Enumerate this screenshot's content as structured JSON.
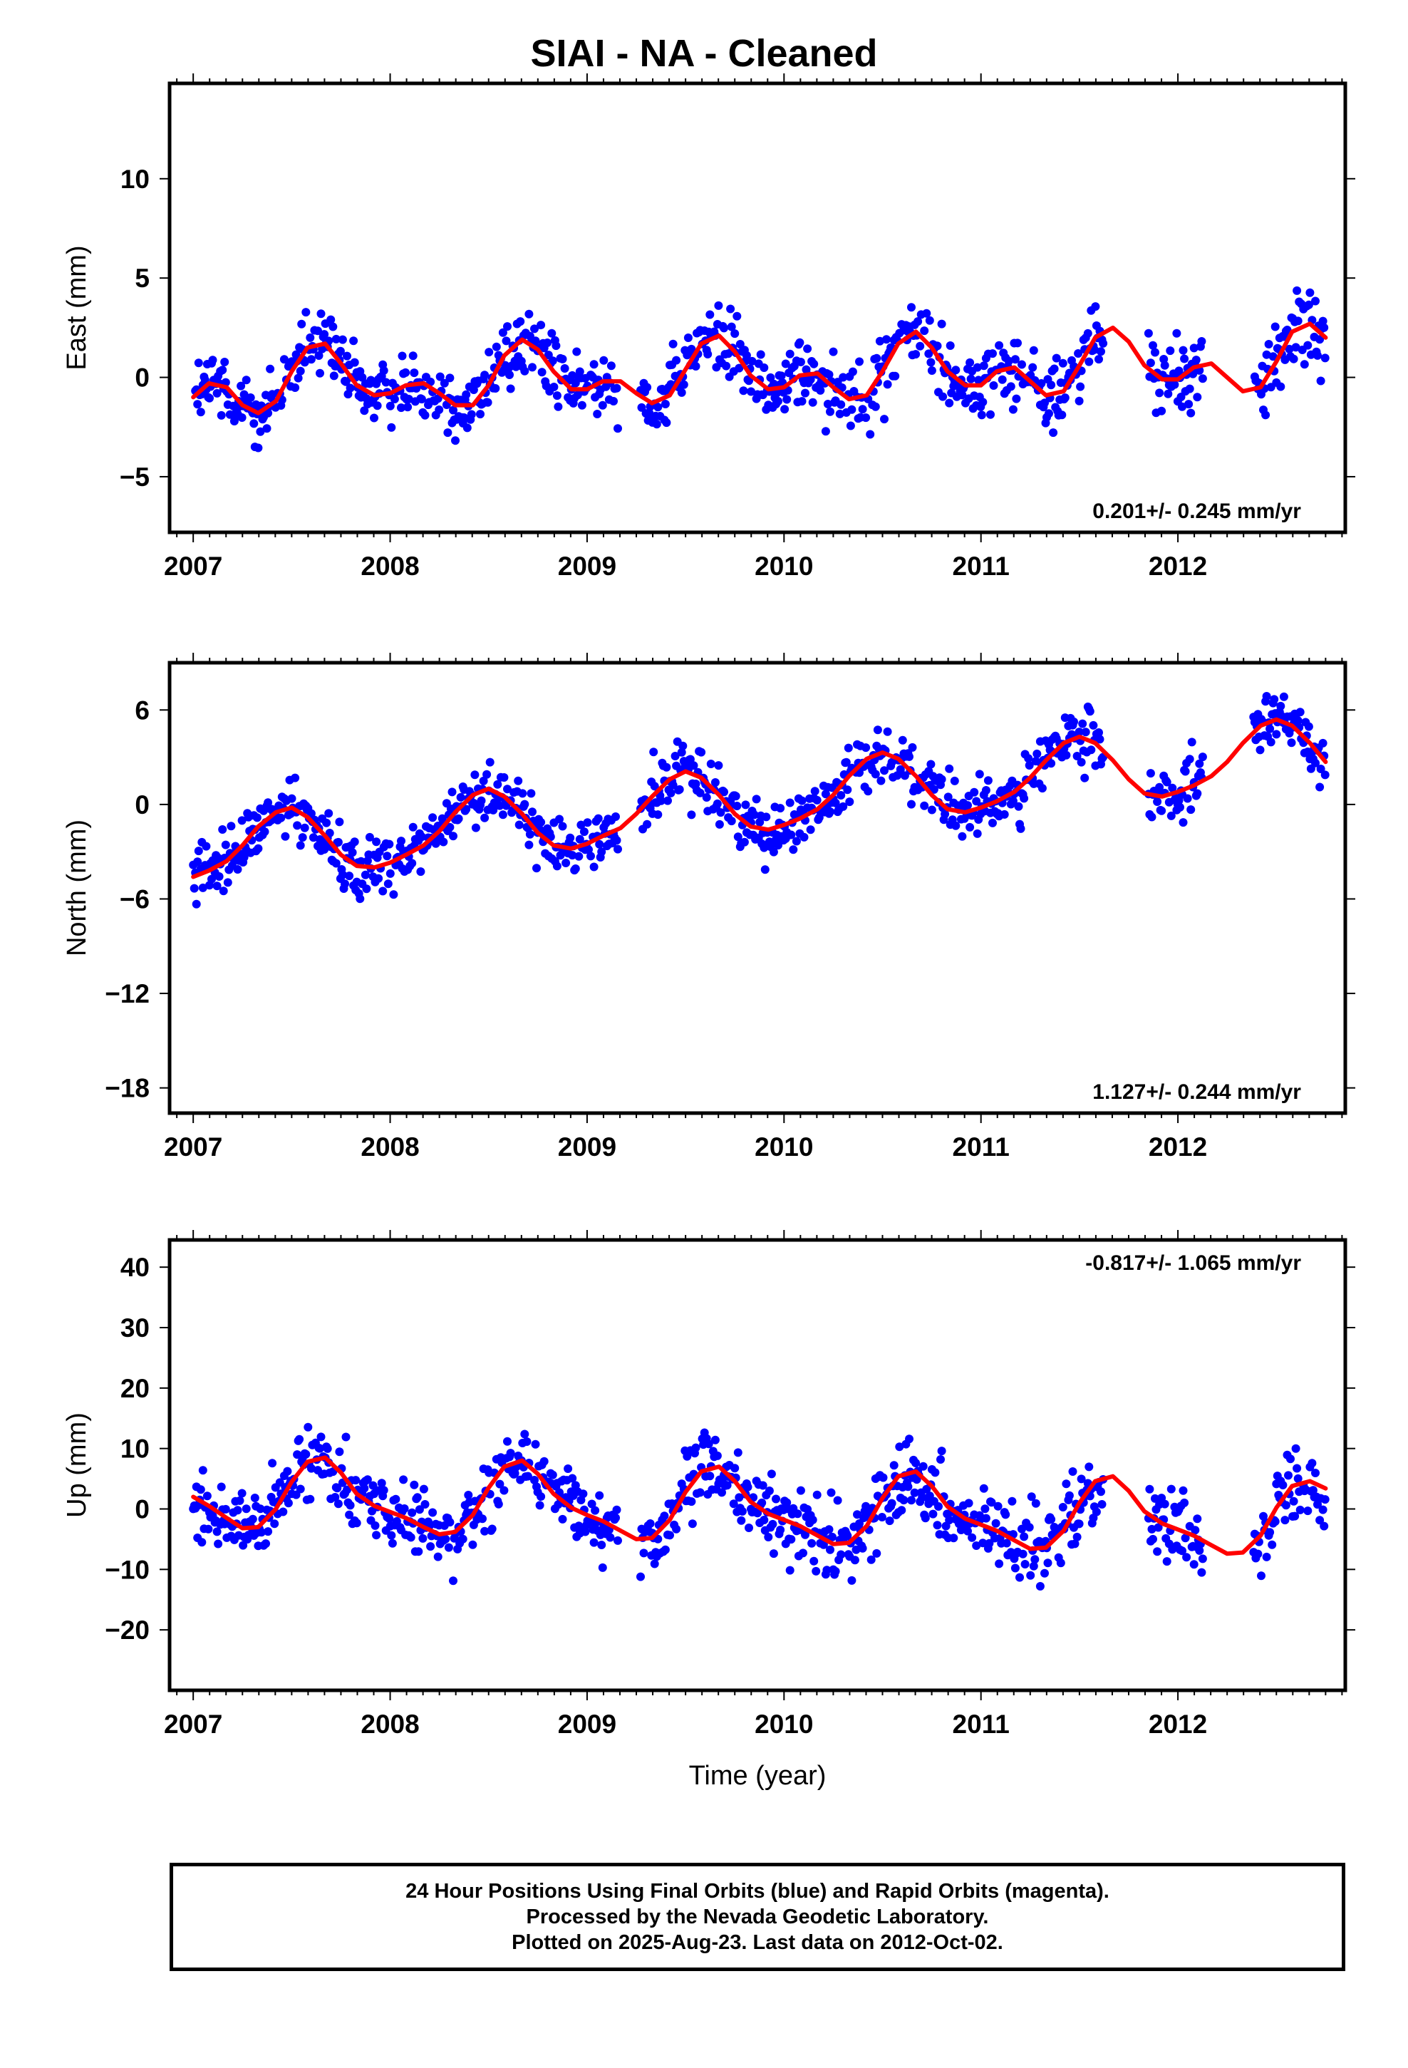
{
  "title": "SIAI  - NA - Cleaned",
  "footer": {
    "line1": "24 Hour Positions Using Final Orbits (blue) and Rapid Orbits (magenta).",
    "line2": "Processed by the Nevada Geodetic Laboratory.",
    "line3": "Plotted on 2025-Aug-23. Last data on 2012-Oct-02."
  },
  "colors": {
    "points": "#0000ff",
    "fit": "#ff0000",
    "frame": "#000000"
  },
  "chart_data": [
    {
      "type": "scatter",
      "ylabel": "East (mm)",
      "xlabel": "",
      "xlim": [
        2006.88,
        2012.85
      ],
      "ylim": [
        -7.8,
        14.8
      ],
      "xticks": [
        2007,
        2008,
        2009,
        2010,
        2011,
        2012
      ],
      "yticks": [
        -5,
        0,
        5,
        10
      ],
      "yticklabels": [
        "−5",
        "0",
        "5",
        "10"
      ],
      "grid": false,
      "rate_label": "0.201+/- 0.245 mm/yr",
      "rate_position": "bottom-right",
      "series": [
        {
          "values": [
            [
              2007.0,
              -1.0
            ],
            [
              2007.08,
              -0.3
            ],
            [
              2007.17,
              -0.5
            ],
            [
              2007.25,
              -1.4
            ],
            [
              2007.33,
              -1.8
            ],
            [
              2007.42,
              -1.2
            ],
            [
              2007.5,
              0.3
            ],
            [
              2007.58,
              1.5
            ],
            [
              2007.67,
              1.7
            ],
            [
              2007.75,
              0.7
            ],
            [
              2007.83,
              -0.4
            ],
            [
              2007.92,
              -0.9
            ],
            [
              2008.0,
              -0.8
            ],
            [
              2008.08,
              -0.4
            ],
            [
              2008.17,
              -0.3
            ],
            [
              2008.25,
              -0.8
            ],
            [
              2008.33,
              -1.4
            ],
            [
              2008.42,
              -1.4
            ],
            [
              2008.5,
              -0.4
            ],
            [
              2008.58,
              1.1
            ],
            [
              2008.67,
              1.9
            ],
            [
              2008.75,
              1.4
            ],
            [
              2008.83,
              0.3
            ],
            [
              2008.92,
              -0.6
            ],
            [
              2009.0,
              -0.6
            ],
            [
              2009.08,
              -0.2
            ],
            [
              2009.17,
              -0.2
            ],
            [
              2009.25,
              -0.8
            ],
            [
              2009.33,
              -1.3
            ],
            [
              2009.42,
              -0.9
            ],
            [
              2009.5,
              0.4
            ],
            [
              2009.58,
              1.7
            ],
            [
              2009.67,
              2.1
            ],
            [
              2009.75,
              1.3
            ],
            [
              2009.83,
              0.1
            ],
            [
              2009.92,
              -0.6
            ],
            [
              2010.0,
              -0.5
            ],
            [
              2010.08,
              0.1
            ],
            [
              2010.17,
              0.2
            ],
            [
              2010.25,
              -0.5
            ],
            [
              2010.33,
              -1.1
            ],
            [
              2010.42,
              -0.9
            ],
            [
              2010.5,
              0.3
            ],
            [
              2010.58,
              1.7
            ],
            [
              2010.67,
              2.3
            ],
            [
              2010.75,
              1.5
            ],
            [
              2010.83,
              0.3
            ],
            [
              2010.92,
              -0.4
            ],
            [
              2011.0,
              -0.4
            ],
            [
              2011.08,
              0.3
            ],
            [
              2011.17,
              0.5
            ],
            [
              2011.25,
              -0.2
            ],
            [
              2011.33,
              -0.9
            ],
            [
              2011.42,
              -0.7
            ],
            [
              2011.5,
              0.6
            ],
            [
              2011.58,
              2.0
            ],
            [
              2011.67,
              2.5
            ],
            [
              2011.75,
              1.8
            ],
            [
              2011.83,
              0.6
            ],
            [
              2011.92,
              -0.1
            ],
            [
              2012.0,
              -0.1
            ],
            [
              2012.08,
              0.5
            ],
            [
              2012.17,
              0.7
            ],
            [
              2012.25,
              0.0
            ],
            [
              2012.33,
              -0.7
            ],
            [
              2012.42,
              -0.5
            ],
            [
              2012.5,
              0.8
            ],
            [
              2012.58,
              2.3
            ],
            [
              2012.67,
              2.7
            ],
            [
              2012.75,
              2.0
            ]
          ]
        }
      ]
    },
    {
      "type": "scatter",
      "ylabel": "North (mm)",
      "xlabel": "",
      "xlim": [
        2006.88,
        2012.85
      ],
      "ylim": [
        -19.6,
        9.0
      ],
      "xticks": [
        2007,
        2008,
        2009,
        2010,
        2011,
        2012
      ],
      "yticks": [
        -18,
        -12,
        -6,
        0,
        6
      ],
      "yticklabels": [
        "−18",
        "−12",
        "−6",
        "0",
        "6"
      ],
      "grid": false,
      "rate_label": "1.127+/- 0.244 mm/yr",
      "rate_position": "bottom-right",
      "series": [
        {
          "values": [
            [
              2007.0,
              -4.6
            ],
            [
              2007.08,
              -4.2
            ],
            [
              2007.17,
              -3.6
            ],
            [
              2007.25,
              -2.6
            ],
            [
              2007.33,
              -1.4
            ],
            [
              2007.42,
              -0.5
            ],
            [
              2007.5,
              -0.2
            ],
            [
              2007.58,
              -0.8
            ],
            [
              2007.67,
              -2.0
            ],
            [
              2007.75,
              -3.2
            ],
            [
              2007.83,
              -3.9
            ],
            [
              2007.92,
              -4.0
            ],
            [
              2008.0,
              -3.7
            ],
            [
              2008.08,
              -3.2
            ],
            [
              2008.17,
              -2.6
            ],
            [
              2008.25,
              -1.7
            ],
            [
              2008.33,
              -0.5
            ],
            [
              2008.42,
              0.6
            ],
            [
              2008.5,
              1.0
            ],
            [
              2008.58,
              0.5
            ],
            [
              2008.67,
              -0.6
            ],
            [
              2008.75,
              -1.8
            ],
            [
              2008.83,
              -2.6
            ],
            [
              2008.92,
              -2.8
            ],
            [
              2009.0,
              -2.5
            ],
            [
              2009.08,
              -2.0
            ],
            [
              2009.17,
              -1.5
            ],
            [
              2009.25,
              -0.6
            ],
            [
              2009.33,
              0.5
            ],
            [
              2009.42,
              1.6
            ],
            [
              2009.5,
              2.1
            ],
            [
              2009.58,
              1.7
            ],
            [
              2009.67,
              0.6
            ],
            [
              2009.75,
              -0.6
            ],
            [
              2009.83,
              -1.4
            ],
            [
              2009.92,
              -1.6
            ],
            [
              2010.0,
              -1.3
            ],
            [
              2010.08,
              -0.9
            ],
            [
              2010.17,
              -0.3
            ],
            [
              2010.25,
              0.6
            ],
            [
              2010.33,
              1.8
            ],
            [
              2010.42,
              2.9
            ],
            [
              2010.5,
              3.3
            ],
            [
              2010.58,
              2.9
            ],
            [
              2010.67,
              1.8
            ],
            [
              2010.75,
              0.6
            ],
            [
              2010.83,
              -0.3
            ],
            [
              2010.92,
              -0.5
            ],
            [
              2011.0,
              -0.2
            ],
            [
              2011.08,
              0.2
            ],
            [
              2011.17,
              0.8
            ],
            [
              2011.25,
              1.7
            ],
            [
              2011.33,
              2.8
            ],
            [
              2011.42,
              3.9
            ],
            [
              2011.5,
              4.3
            ],
            [
              2011.58,
              3.9
            ],
            [
              2011.67,
              2.8
            ],
            [
              2011.75,
              1.6
            ],
            [
              2011.83,
              0.7
            ],
            [
              2011.92,
              0.5
            ],
            [
              2012.0,
              0.8
            ],
            [
              2012.08,
              1.2
            ],
            [
              2012.17,
              1.8
            ],
            [
              2012.25,
              2.7
            ],
            [
              2012.33,
              3.9
            ],
            [
              2012.42,
              5.0
            ],
            [
              2012.5,
              5.4
            ],
            [
              2012.58,
              5.0
            ],
            [
              2012.67,
              3.9
            ],
            [
              2012.75,
              2.7
            ]
          ]
        }
      ]
    },
    {
      "type": "scatter",
      "ylabel": "Up (mm)",
      "xlabel": "Time (year)",
      "xlim": [
        2006.88,
        2012.85
      ],
      "ylim": [
        -30.0,
        44.5
      ],
      "xticks": [
        2007,
        2008,
        2009,
        2010,
        2011,
        2012
      ],
      "yticks": [
        -20,
        -10,
        0,
        10,
        20,
        30,
        40
      ],
      "yticklabels": [
        "−20",
        "−10",
        "0",
        "10",
        "20",
        "30",
        "40"
      ],
      "grid": false,
      "rate_label": "-0.817+/- 1.065 mm/yr",
      "rate_position": "top-right",
      "series": [
        {
          "values": [
            [
              2007.0,
              2.0
            ],
            [
              2007.08,
              0.5
            ],
            [
              2007.17,
              -1.5
            ],
            [
              2007.25,
              -3.2
            ],
            [
              2007.33,
              -3.0
            ],
            [
              2007.42,
              0.0
            ],
            [
              2007.5,
              4.5
            ],
            [
              2007.58,
              7.8
            ],
            [
              2007.67,
              8.5
            ],
            [
              2007.75,
              6.0
            ],
            [
              2007.83,
              2.5
            ],
            [
              2007.92,
              0.5
            ],
            [
              2008.0,
              -0.5
            ],
            [
              2008.08,
              -1.5
            ],
            [
              2008.17,
              -3.0
            ],
            [
              2008.25,
              -4.2
            ],
            [
              2008.33,
              -3.8
            ],
            [
              2008.42,
              -1.0
            ],
            [
              2008.5,
              3.5
            ],
            [
              2008.58,
              7.0
            ],
            [
              2008.67,
              8.0
            ],
            [
              2008.75,
              5.8
            ],
            [
              2008.83,
              2.5
            ],
            [
              2008.92,
              0.2
            ],
            [
              2009.0,
              -1.0
            ],
            [
              2009.08,
              -2.0
            ],
            [
              2009.17,
              -3.6
            ],
            [
              2009.25,
              -5.0
            ],
            [
              2009.33,
              -4.8
            ],
            [
              2009.42,
              -1.8
            ],
            [
              2009.5,
              2.8
            ],
            [
              2009.58,
              6.2
            ],
            [
              2009.67,
              7.0
            ],
            [
              2009.75,
              4.6
            ],
            [
              2009.83,
              1.2
            ],
            [
              2009.92,
              -0.8
            ],
            [
              2010.0,
              -1.8
            ],
            [
              2010.08,
              -2.8
            ],
            [
              2010.17,
              -4.4
            ],
            [
              2010.25,
              -5.8
            ],
            [
              2010.33,
              -5.6
            ],
            [
              2010.42,
              -2.8
            ],
            [
              2010.5,
              1.8
            ],
            [
              2010.58,
              5.4
            ],
            [
              2010.67,
              6.2
            ],
            [
              2010.75,
              3.8
            ],
            [
              2010.83,
              0.4
            ],
            [
              2010.92,
              -1.6
            ],
            [
              2011.0,
              -2.6
            ],
            [
              2011.08,
              -3.6
            ],
            [
              2011.17,
              -5.2
            ],
            [
              2011.25,
              -6.6
            ],
            [
              2011.33,
              -6.4
            ],
            [
              2011.42,
              -3.6
            ],
            [
              2011.5,
              1.0
            ],
            [
              2011.58,
              4.6
            ],
            [
              2011.67,
              5.4
            ],
            [
              2011.75,
              3.0
            ],
            [
              2011.83,
              -0.4
            ],
            [
              2011.92,
              -2.4
            ],
            [
              2012.0,
              -3.4
            ],
            [
              2012.08,
              -4.4
            ],
            [
              2012.17,
              -6.0
            ],
            [
              2012.25,
              -7.4
            ],
            [
              2012.33,
              -7.2
            ],
            [
              2012.42,
              -4.4
            ],
            [
              2012.5,
              0.2
            ],
            [
              2012.58,
              3.8
            ],
            [
              2012.67,
              4.6
            ],
            [
              2012.75,
              3.4
            ]
          ]
        }
      ]
    }
  ]
}
